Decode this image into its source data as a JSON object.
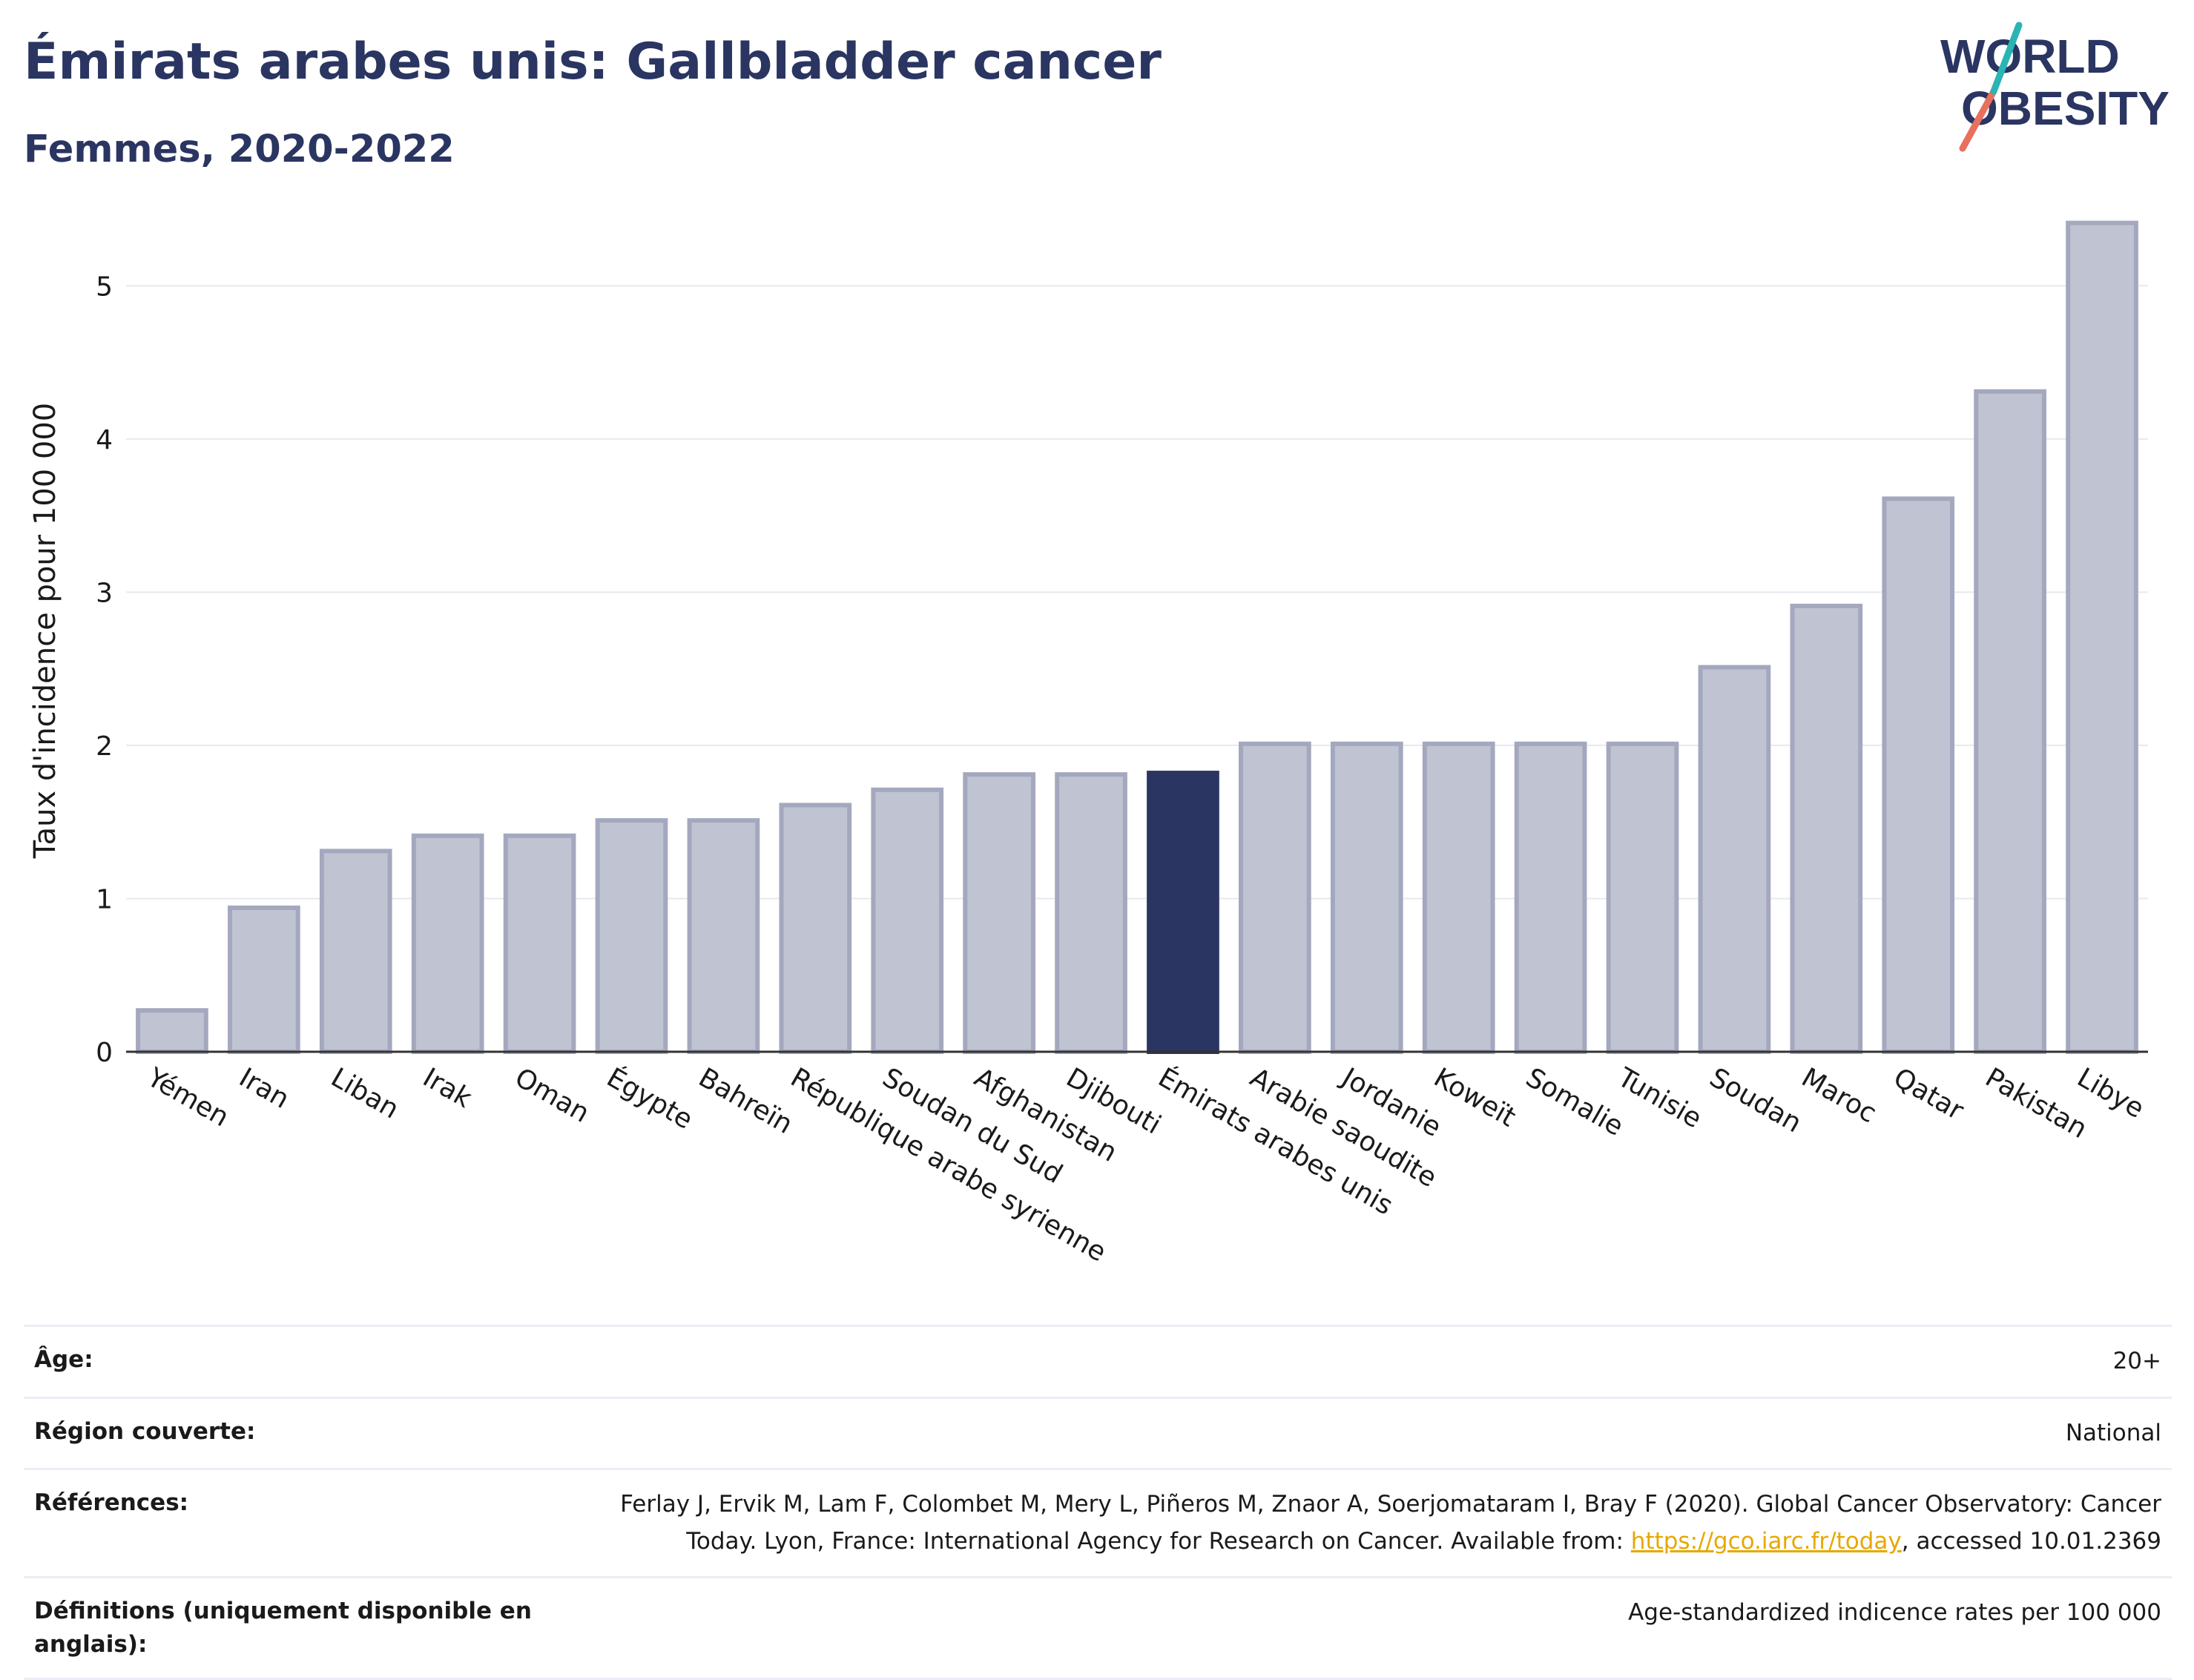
{
  "header": {
    "title": "Émirats arabes unis: Gallbladder cancer",
    "subtitle": "Femmes, 2020-2022"
  },
  "logo": {
    "line1": "WORLD",
    "line2": "OBESITY"
  },
  "colors": {
    "bar_default": "#c0c3d1",
    "bar_default_stroke": "#a4a8be",
    "bar_highlight": "#2a3561",
    "grid": "#e6e9ef"
  },
  "chart_data": {
    "type": "bar",
    "title": "Émirats arabes unis: Gallbladder cancer",
    "subtitle": "Femmes, 2020-2022",
    "xlabel": "",
    "ylabel": "Taux d'incidence pour 100 000",
    "ylim": [
      0,
      5.5
    ],
    "yticks": [
      0,
      1,
      2,
      3,
      4,
      5
    ],
    "grid": true,
    "highlight": "Émirats arabes unis",
    "categories": [
      "Yémen",
      "Iran",
      "Liban",
      "Irak",
      "Oman",
      "Égypte",
      "Bahreïn",
      "République arabe syrienne",
      "Soudan du Sud",
      "Afghanistan",
      "Djibouti",
      "Émirats arabes unis",
      "Arabie saoudite",
      "Jordanie",
      "Koweït",
      "Somalie",
      "Tunisie",
      "Soudan",
      "Maroc",
      "Qatar",
      "Pakistan",
      "Libye"
    ],
    "values": [
      0.27,
      0.94,
      1.31,
      1.41,
      1.41,
      1.51,
      1.51,
      1.61,
      1.71,
      1.81,
      1.81,
      1.82,
      2.01,
      2.01,
      2.01,
      2.01,
      2.01,
      2.51,
      2.91,
      3.61,
      4.31,
      5.41
    ]
  },
  "info": {
    "age_label": "Âge:",
    "age_value": "20+",
    "region_label": "Région couverte:",
    "region_value": "National",
    "refs_label": "Références:",
    "refs_text_1": "Ferlay J, Ervik M, Lam F, Colombet M, Mery L, Piñeros M, Znaor A, Soerjomataram I, Bray F (2020). Global Cancer Observatory: Cancer",
    "refs_text_2": "Today. Lyon, France: International Agency for Research on Cancer. Available from: ",
    "refs_link": "https://gco.iarc.fr/today",
    "refs_text_3": ", accessed 10.01.2369",
    "defs_label": "Définitions (uniquement disponible en anglais):",
    "defs_value": "Age-standardized indicence rates per 100 000"
  }
}
